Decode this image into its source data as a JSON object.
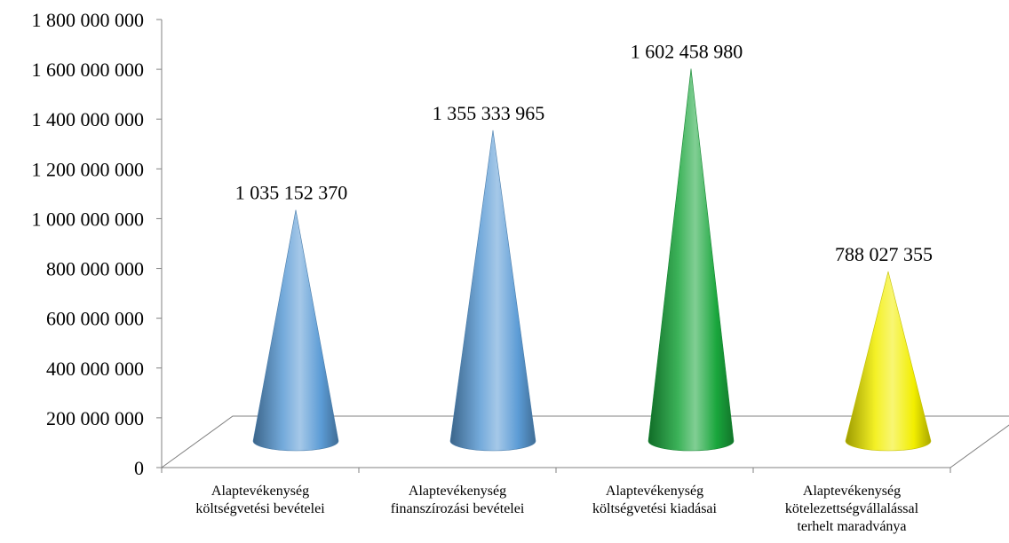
{
  "chart_data": {
    "type": "bar",
    "style": "3d-cone",
    "title": "",
    "xlabel": "",
    "ylabel": "",
    "ylim": [
      0,
      1800000000
    ],
    "yticks": [
      {
        "value": 0,
        "label": "0"
      },
      {
        "value": 200000000,
        "label": "200 000 000"
      },
      {
        "value": 400000000,
        "label": "400 000 000"
      },
      {
        "value": 600000000,
        "label": "600 000 000"
      },
      {
        "value": 800000000,
        "label": "800 000 000"
      },
      {
        "value": 1000000000,
        "label": "1 000 000 000"
      },
      {
        "value": 1200000000,
        "label": "1 200 000 000"
      },
      {
        "value": 1400000000,
        "label": "1 400 000 000"
      },
      {
        "value": 1600000000,
        "label": "1 600 000 000"
      },
      {
        "value": 1800000000,
        "label": "1 800 000 000"
      }
    ],
    "grid": false,
    "legend": "none",
    "categories": [
      {
        "lines": [
          "Alaptevékenység",
          "költségvetési bevételei"
        ]
      },
      {
        "lines": [
          "Alaptevékenység",
          "finanszírozási bevételei"
        ]
      },
      {
        "lines": [
          "Alaptevékenység",
          "költségvetési kiadásai"
        ]
      },
      {
        "lines": [
          "Alaptevékenység",
          "kötelezettségvállalással",
          "terhelt maradványa"
        ]
      }
    ],
    "values": [
      1035152370,
      1355333965,
      1602458980,
      788027355
    ],
    "data_labels": [
      "1 035 152 370",
      "1 355 333 965",
      "1 602 458 980",
      "788 027 355"
    ],
    "colors": [
      "#5b9bd5",
      "#5b9bd5",
      "#19a63c",
      "#f2ee00"
    ]
  }
}
